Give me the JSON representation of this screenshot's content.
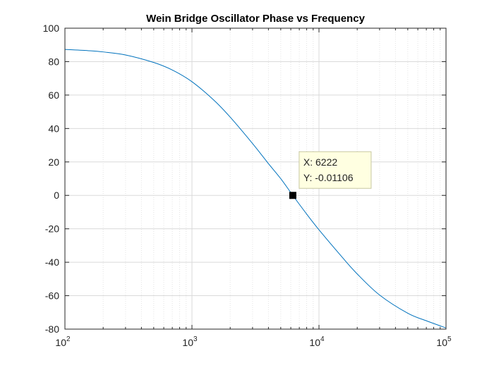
{
  "chart_data": {
    "type": "line",
    "title": "Wein Bridge Oscillator Phase vs Frequency",
    "xlabel": "",
    "ylabel": "",
    "x_scale": "log",
    "xlim": [
      100,
      100000
    ],
    "ylim": [
      -80,
      100
    ],
    "grid": true,
    "x_ticks": [
      {
        "value": 100,
        "base": "10",
        "exp": "2"
      },
      {
        "value": 1000,
        "base": "10",
        "exp": "3"
      },
      {
        "value": 10000,
        "base": "10",
        "exp": "4"
      },
      {
        "value": 100000,
        "base": "10",
        "exp": "5"
      }
    ],
    "y_ticks": [
      {
        "value": 100,
        "label": "100"
      },
      {
        "value": 80,
        "label": "80"
      },
      {
        "value": 60,
        "label": "60"
      },
      {
        "value": 40,
        "label": "40"
      },
      {
        "value": 20,
        "label": "20"
      },
      {
        "value": 0,
        "label": "0"
      },
      {
        "value": -20,
        "label": "-20"
      },
      {
        "value": -40,
        "label": "-40"
      },
      {
        "value": -60,
        "label": "-60"
      },
      {
        "value": -80,
        "label": "-80"
      }
    ],
    "series": [
      {
        "color": "#0072bd",
        "x": [
          100,
          150,
          200,
          300,
          500,
          700,
          1000,
          1500,
          2000,
          3000,
          4000,
          5000,
          6222,
          8000,
          10000,
          15000,
          20000,
          30000,
          50000,
          70000,
          100000
        ],
        "y": [
          87.3,
          86.6,
          85.8,
          84.0,
          79.5,
          75.0,
          68.0,
          56.7,
          46.8,
          31.0,
          19.0,
          10.0,
          -0.01,
          -11.2,
          -20.6,
          -36.4,
          -47.0,
          -59.6,
          -70.5,
          -75.0,
          -79.3
        ]
      }
    ],
    "datatip": {
      "x": 6222,
      "y": -0.01106,
      "x_label": "X: 6222",
      "y_label": "Y: -0.01106"
    }
  },
  "colors": {
    "line": "#0072bd",
    "grid": "#e3e3e3",
    "axis": "#262626",
    "datatip_bg": "#ffffe1",
    "datatip_border": "#c8c8a0",
    "marker": "#000000"
  }
}
